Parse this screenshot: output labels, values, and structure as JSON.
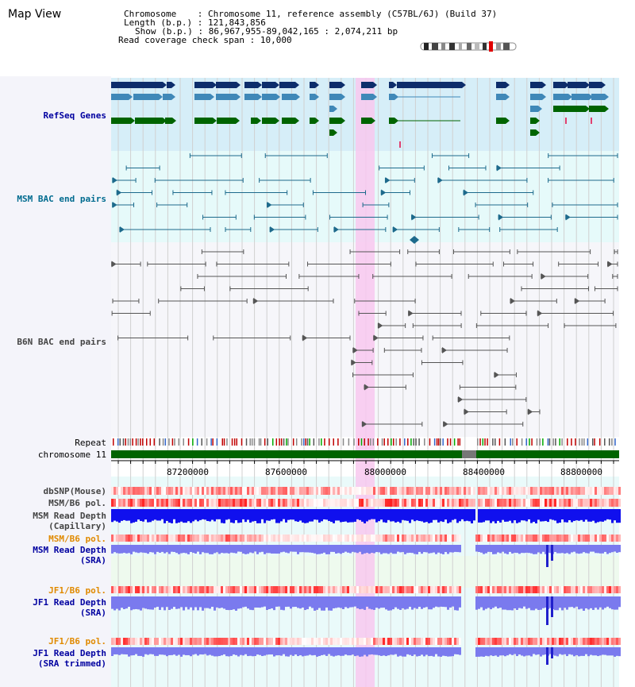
{
  "page": {
    "title": "Map View"
  },
  "info": {
    "chromosome_label": "Chromosome",
    "chromosome_value": "Chromosome 11, reference assembly (C57BL/6J) (Build 37)",
    "length_label": "Length (b.p.)",
    "length_value": "121,843,856",
    "show_label": "Show (b.p.)",
    "show_value": "86,967,955-89,042,165 : 2,074,211 bp",
    "span_label": "Read coverage check span",
    "span_value": "10,000"
  },
  "tracks": {
    "refseq": "RefSeq Genes",
    "msm_bac": "MSM BAC end pairs",
    "b6n_bac": "B6N BAC end pairs",
    "repeat": "Repeat",
    "chromosome": "chromosome 11",
    "dbsnp": "dbSNP(Mouse)",
    "msm_b6_pol": "MSM/B6 pol.",
    "msm_depth_cap_1": "MSM Read Depth",
    "msm_depth_cap_2": "(Capillary)",
    "msm_b6_pol_2": "MSM/B6 pol.",
    "msm_depth_sra_1": "MSM Read Depth",
    "msm_depth_sra_2": "(SRA)",
    "jf1_b6_pol": "JF1/B6 pol.",
    "jf1_depth_sra_1": "JF1 Read Depth",
    "jf1_depth_sra_2": "(SRA)",
    "jf1_b6_pol_2": "JF1/B6 pol.",
    "jf1_depth_trim_1": "JF1 Read Depth",
    "jf1_depth_trim_2": "(SRA trimmed)"
  },
  "axis": {
    "ticks": [
      "87200000",
      "87600000",
      "88000000",
      "88400000",
      "88800000"
    ]
  },
  "colors": {
    "refseq_bg": "#d6eef8",
    "bac_bg": "#e6fafa",
    "highlight": "#f8c8ee",
    "gene_navy": "#0d2d6b",
    "gene_blue": "#3f88b8",
    "gene_green": "#006400",
    "bac_teal": "#1d6a8c",
    "bac_gray": "#555555",
    "chromosome_green": "#006400",
    "depth_blue": "#1010ee",
    "depth_light": "#7a7aee"
  }
}
